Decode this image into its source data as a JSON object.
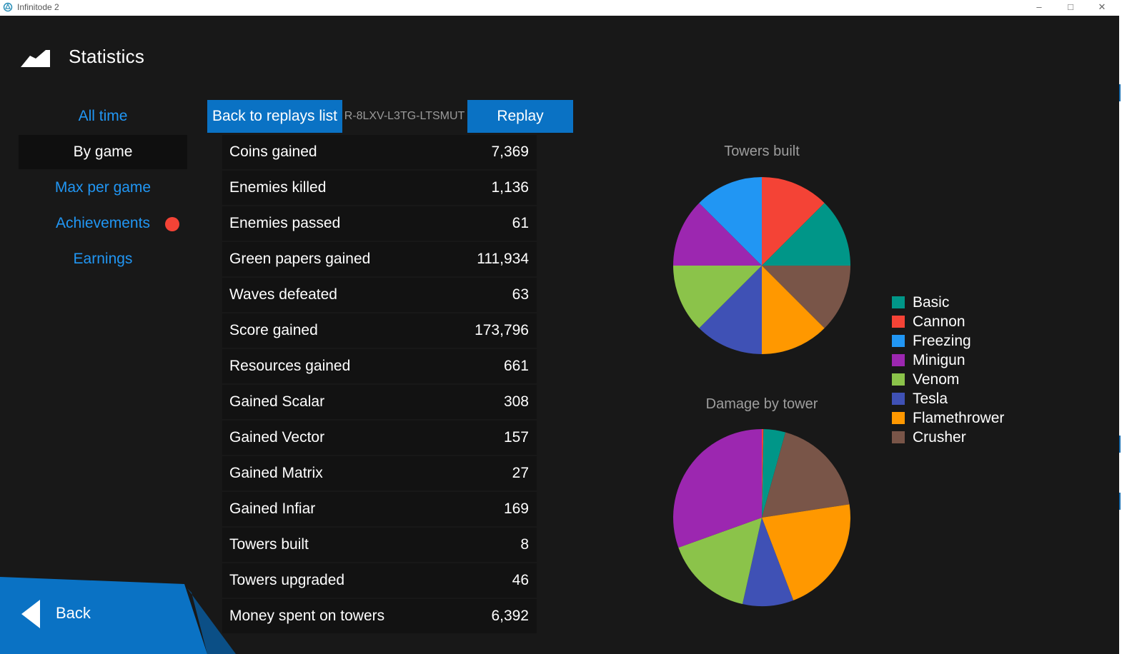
{
  "window": {
    "title": "Infinitode 2",
    "controls": [
      "minimize-icon",
      "maximize-icon",
      "close-icon"
    ]
  },
  "header": {
    "title": "Statistics",
    "icon": "mountain-icon"
  },
  "menu": {
    "items": [
      {
        "label": "All time",
        "active": false
      },
      {
        "label": "By game",
        "active": true
      },
      {
        "label": "Max per game",
        "active": false
      },
      {
        "label": "Achievements",
        "active": false,
        "badge": true
      },
      {
        "label": "Earnings",
        "active": false
      }
    ]
  },
  "toolbar": {
    "back_to_list_label": "Back to replays list",
    "replay_id": "R-8LXV-L3TG-LTSMUT",
    "replay_label": "Replay"
  },
  "stats": [
    {
      "label": "Coins gained",
      "value": "7,369"
    },
    {
      "label": "Enemies killed",
      "value": "1,136"
    },
    {
      "label": "Enemies passed",
      "value": "61"
    },
    {
      "label": "Green papers gained",
      "value": "111,934"
    },
    {
      "label": "Waves defeated",
      "value": "63"
    },
    {
      "label": "Score gained",
      "value": "173,796"
    },
    {
      "label": "Resources gained",
      "value": "661"
    },
    {
      "label": "Gained Scalar",
      "value": "308"
    },
    {
      "label": "Gained Vector",
      "value": "157"
    },
    {
      "label": "Gained Matrix",
      "value": "27"
    },
    {
      "label": "Gained Infiar",
      "value": "169"
    },
    {
      "label": "Towers built",
      "value": "8"
    },
    {
      "label": "Towers upgraded",
      "value": "46"
    },
    {
      "label": "Money spent on towers",
      "value": "6,392"
    }
  ],
  "legend": [
    {
      "name": "Basic",
      "color": "#009688"
    },
    {
      "name": "Cannon",
      "color": "#f44336"
    },
    {
      "name": "Freezing",
      "color": "#2196f3"
    },
    {
      "name": "Minigun",
      "color": "#9c27b0"
    },
    {
      "name": "Venom",
      "color": "#8bc34a"
    },
    {
      "name": "Tesla",
      "color": "#3f51b5"
    },
    {
      "name": "Flamethrower",
      "color": "#ff9800"
    },
    {
      "name": "Crusher",
      "color": "#795548"
    }
  ],
  "chart_data": [
    {
      "type": "pie",
      "title": "Towers built",
      "categories": [
        "Basic",
        "Cannon",
        "Freezing",
        "Minigun",
        "Venom",
        "Tesla",
        "Flamethrower",
        "Crusher"
      ],
      "values": [
        1,
        1,
        1,
        1,
        1,
        1,
        1,
        1
      ]
    },
    {
      "type": "pie",
      "title": "Damage by tower",
      "categories": [
        "Basic",
        "Cannon",
        "Freezing",
        "Minigun",
        "Venom",
        "Tesla",
        "Flamethrower",
        "Crusher"
      ],
      "values": [
        4.0,
        0.3,
        0.0,
        30.5,
        16.0,
        9.3,
        21.6,
        18.3
      ]
    }
  ],
  "back_button": {
    "label": "Back"
  }
}
